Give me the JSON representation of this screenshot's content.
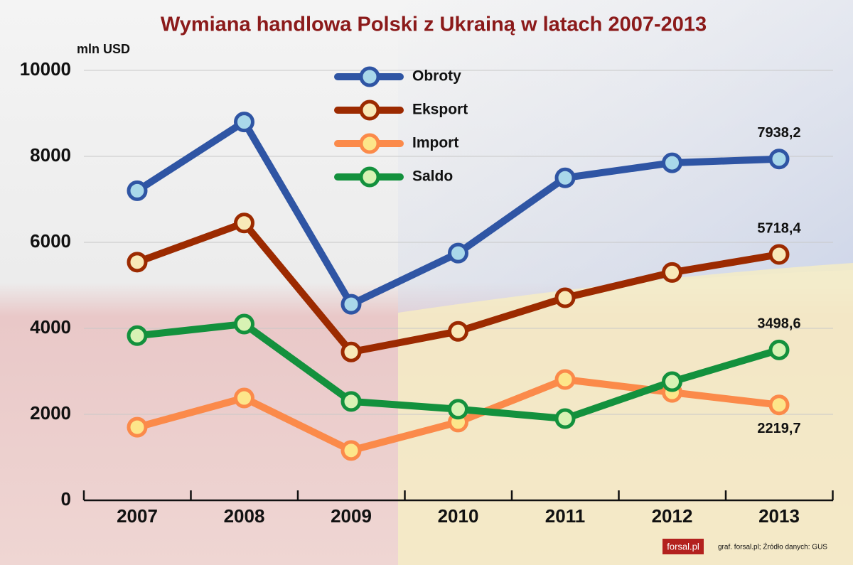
{
  "chart_data": {
    "type": "line",
    "title": "Wymiana handlowa Polski z Ukrainą w latach 2007-2013",
    "y_label": "mln USD",
    "categories": [
      "2007",
      "2008",
      "2009",
      "2010",
      "2011",
      "2012",
      "2013"
    ],
    "series": [
      {
        "name": "Obroty",
        "color": "#2f55a4",
        "marker_color": "#a9d8ea",
        "values": [
          7200,
          8800,
          4560,
          5750,
          7500,
          7850,
          7938.2
        ],
        "value_labels": [
          null,
          null,
          null,
          null,
          null,
          null,
          "7938,2"
        ]
      },
      {
        "name": "Eksport",
        "color": "#9c2a00",
        "marker_color": "#f8e9b8",
        "values": [
          5540,
          6450,
          3450,
          3930,
          4710,
          5300,
          5718.4
        ],
        "value_labels": [
          null,
          null,
          null,
          null,
          null,
          null,
          "5718,4"
        ]
      },
      {
        "name": "Import",
        "color": "#fb8a4a",
        "marker_color": "#fde68a",
        "values": [
          1700,
          2380,
          1160,
          1820,
          2810,
          2510,
          2219.7
        ],
        "value_labels": [
          null,
          null,
          null,
          null,
          null,
          null,
          "2219,7"
        ]
      },
      {
        "name": "Saldo",
        "color": "#13913d",
        "marker_color": "#d8f2b4",
        "values": [
          3830,
          4100,
          2300,
          2120,
          1900,
          2760,
          3498.6
        ],
        "value_labels": [
          null,
          null,
          null,
          null,
          null,
          null,
          "3498,6"
        ]
      }
    ],
    "ylim": [
      0,
      10000
    ],
    "yticks": [
      0,
      2000,
      4000,
      6000,
      8000,
      10000
    ],
    "grid": true,
    "logo": "forsal.pl",
    "source": "graf. forsal.pl;  Źródło danych: GUS"
  }
}
